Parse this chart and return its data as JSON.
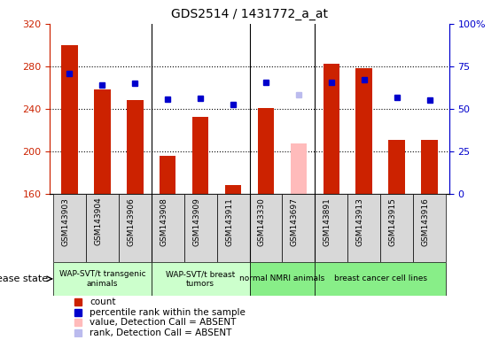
{
  "title": "GDS2514 / 1431772_a_at",
  "samples": [
    "GSM143903",
    "GSM143904",
    "GSM143906",
    "GSM143908",
    "GSM143909",
    "GSM143911",
    "GSM143330",
    "GSM143697",
    "GSM143891",
    "GSM143913",
    "GSM143915",
    "GSM143916"
  ],
  "bar_values": [
    300,
    258,
    248,
    196,
    232,
    168,
    241,
    207,
    282,
    278,
    211,
    211
  ],
  "bar_colors": [
    "#cc2200",
    "#cc2200",
    "#cc2200",
    "#cc2200",
    "#cc2200",
    "#cc2200",
    "#cc2200",
    "#ffbbbb",
    "#cc2200",
    "#cc2200",
    "#cc2200",
    "#cc2200"
  ],
  "percentile_values": [
    273,
    262,
    264,
    249,
    250,
    244,
    265,
    253,
    265,
    267,
    251,
    248
  ],
  "percentile_colors": [
    "#0000cc",
    "#0000cc",
    "#0000cc",
    "#0000cc",
    "#0000cc",
    "#0000cc",
    "#0000cc",
    "#bbbbee",
    "#0000cc",
    "#0000cc",
    "#0000cc",
    "#0000cc"
  ],
  "ylim_left": [
    160,
    320
  ],
  "ylim_right": [
    0,
    100
  ],
  "yticks_left": [
    160,
    200,
    240,
    280,
    320
  ],
  "yticks_right": [
    0,
    25,
    50,
    75,
    100
  ],
  "yticklabels_right": [
    "0",
    "25",
    "50",
    "75",
    "100%"
  ],
  "groups": [
    {
      "label": "WAP-SVT/t transgenic\nanimals",
      "indices": [
        0,
        1,
        2
      ],
      "color": "#ccffcc"
    },
    {
      "label": "WAP-SVT/t breast\ntumors",
      "indices": [
        3,
        4,
        5
      ],
      "color": "#ccffcc"
    },
    {
      "label": "normal NMRI animals",
      "indices": [
        6,
        7
      ],
      "color": "#88ee88"
    },
    {
      "label": "breast cancer cell lines",
      "indices": [
        8,
        9,
        10,
        11
      ],
      "color": "#88ee88"
    }
  ],
  "group_borders": [
    2.5,
    5.5,
    7.5
  ],
  "disease_state_label": "disease state",
  "bar_width": 0.5,
  "left_color": "#cc2200",
  "right_color": "#0000cc",
  "grid_yticks": [
    200,
    240,
    280
  ],
  "legend_items": [
    {
      "marker": "s",
      "color": "#cc2200",
      "label": "count"
    },
    {
      "marker": "s",
      "color": "#0000cc",
      "label": "percentile rank within the sample"
    },
    {
      "marker": "s",
      "color": "#ffbbbb",
      "label": "value, Detection Call = ABSENT"
    },
    {
      "marker": "s",
      "color": "#bbbbee",
      "label": "rank, Detection Call = ABSENT"
    }
  ]
}
